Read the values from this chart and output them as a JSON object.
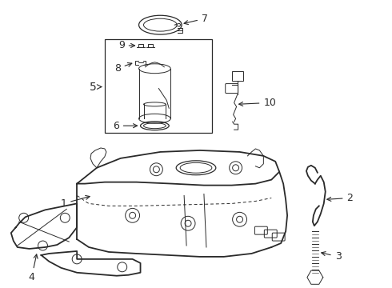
{
  "background_color": "#ffffff",
  "line_color": "#2a2a2a",
  "figsize": [
    4.9,
    3.6
  ],
  "dpi": 100,
  "font_size": 9,
  "lw_thick": 1.3,
  "lw_med": 0.9,
  "lw_thin": 0.7
}
